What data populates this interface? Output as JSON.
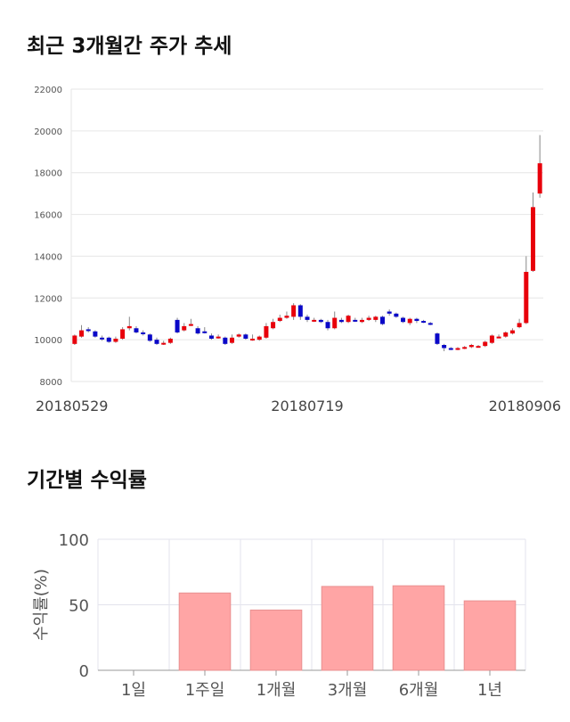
{
  "sections": {
    "price_title": "최근 3개월간 주가 추세",
    "return_title": "기간별 수익률"
  },
  "chart_data": [
    {
      "type": "candlestick",
      "title": "최근 3개월간 주가 추세",
      "ylim": [
        8000,
        22000
      ],
      "yticks": [
        "22000",
        "20000",
        "18000",
        "16000",
        "14000",
        "12000",
        "10000",
        "8000"
      ],
      "xticks": [
        "20180529",
        "20180719",
        "20180906"
      ],
      "grid": true,
      "colors": {
        "up": "#e8000b",
        "down": "#0a08c8",
        "wick": "#888888"
      },
      "candles": [
        [
          9800,
          10200,
          10250,
          9750
        ],
        [
          10150,
          10450,
          10700,
          10100
        ],
        [
          10500,
          10450,
          10600,
          10350
        ],
        [
          10400,
          10150,
          10450,
          10100
        ],
        [
          10100,
          10050,
          10200,
          9950
        ],
        [
          10100,
          9900,
          10150,
          9850
        ],
        [
          9900,
          10050,
          10150,
          9850
        ],
        [
          10050,
          10500,
          10600,
          10000
        ],
        [
          10550,
          10650,
          11100,
          10450
        ],
        [
          10550,
          10350,
          10650,
          10300
        ],
        [
          10350,
          10300,
          10450,
          10200
        ],
        [
          10250,
          9950,
          10300,
          9900
        ],
        [
          10000,
          9800,
          10100,
          9750
        ],
        [
          9800,
          9850,
          9950,
          9750
        ],
        [
          9850,
          10050,
          10100,
          9800
        ],
        [
          10950,
          10350,
          11050,
          10300
        ],
        [
          10450,
          10650,
          10800,
          10400
        ],
        [
          10750,
          10750,
          11000,
          10650
        ],
        [
          10550,
          10300,
          10650,
          10250
        ],
        [
          10400,
          10350,
          10600,
          10300
        ],
        [
          10200,
          10050,
          10300,
          10000
        ],
        [
          10150,
          10150,
          10250,
          10050
        ],
        [
          10100,
          9800,
          10150,
          9750
        ],
        [
          9850,
          10100,
          10250,
          9800
        ],
        [
          10150,
          10250,
          10300,
          10100
        ],
        [
          10250,
          10050,
          10300,
          10000
        ],
        [
          10050,
          10050,
          10250,
          9950
        ],
        [
          10000,
          10150,
          10200,
          9950
        ],
        [
          10100,
          10650,
          10800,
          10050
        ],
        [
          10550,
          10850,
          11000,
          10500
        ],
        [
          10900,
          11050,
          11200,
          10850
        ],
        [
          11050,
          11150,
          11350,
          11000
        ],
        [
          11100,
          11650,
          11750,
          10950
        ],
        [
          11650,
          11100,
          11700,
          10950
        ],
        [
          11100,
          10950,
          11200,
          10850
        ],
        [
          10950,
          10950,
          11050,
          10850
        ],
        [
          10950,
          10850,
          11000,
          10800
        ],
        [
          10850,
          10550,
          10950,
          10450
        ],
        [
          10550,
          11050,
          11350,
          10500
        ],
        [
          10950,
          10850,
          11050,
          10800
        ],
        [
          10850,
          11150,
          11200,
          10800
        ],
        [
          10950,
          10900,
          11050,
          10850
        ],
        [
          10850,
          10950,
          11050,
          10800
        ],
        [
          10950,
          11050,
          11150,
          10900
        ],
        [
          10950,
          11100,
          11150,
          10850
        ],
        [
          11100,
          10750,
          11150,
          10700
        ],
        [
          11350,
          11250,
          11450,
          11150
        ],
        [
          11250,
          11100,
          11300,
          11050
        ],
        [
          11050,
          10850,
          11100,
          10800
        ],
        [
          10800,
          11000,
          11050,
          10700
        ],
        [
          11000,
          10900,
          11050,
          10800
        ],
        [
          10900,
          10850,
          10950,
          10800
        ],
        [
          10800,
          10750,
          10850,
          10700
        ],
        [
          10300,
          9800,
          10350,
          9750
        ],
        [
          9750,
          9600,
          9800,
          9450
        ],
        [
          9600,
          9550,
          9650,
          9500
        ],
        [
          9550,
          9600,
          9650,
          9500
        ],
        [
          9600,
          9650,
          9700,
          9550
        ],
        [
          9650,
          9750,
          9800,
          9600
        ],
        [
          9700,
          9700,
          9750,
          9650
        ],
        [
          9700,
          9900,
          9950,
          9650
        ],
        [
          9850,
          10200,
          10250,
          9800
        ],
        [
          10150,
          10150,
          10250,
          10100
        ],
        [
          10150,
          10350,
          10400,
          10100
        ],
        [
          10300,
          10450,
          10550,
          10250
        ],
        [
          10600,
          10800,
          11000,
          10550
        ],
        [
          10800,
          13250,
          14000,
          10750
        ],
        [
          13300,
          16350,
          17050,
          13250
        ],
        [
          17000,
          18450,
          19800,
          16800
        ]
      ]
    },
    {
      "type": "bar",
      "title": "기간별 수익률",
      "ylabel": "수익률(%)",
      "ylim": [
        0,
        100
      ],
      "yticks": [
        "100",
        "50",
        "0"
      ],
      "categories": [
        "1일",
        "1주일",
        "1개월",
        "3개월",
        "6개월",
        "1년"
      ],
      "values": [
        0,
        59,
        46,
        64,
        64.5,
        53
      ],
      "colors": {
        "bar": "#ffa5a5",
        "barStroke": "#e89090"
      }
    }
  ]
}
